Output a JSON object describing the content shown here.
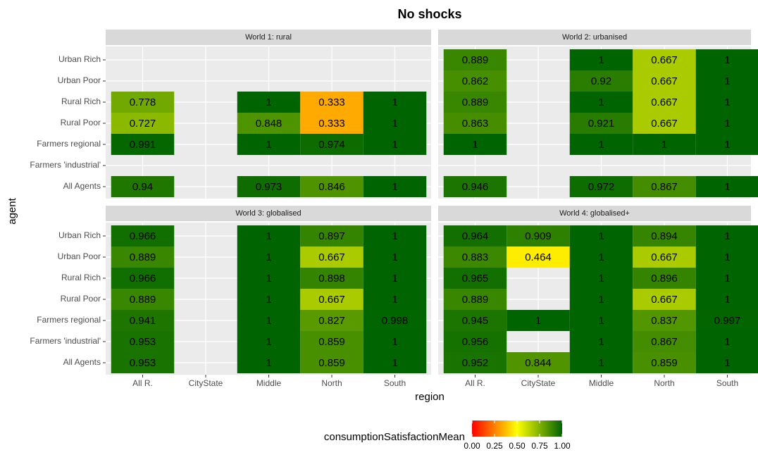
{
  "chart_data": {
    "type": "heatmap",
    "title": "No shocks",
    "x_label": "region",
    "y_label": "agent",
    "categories": [
      "All R.",
      "CityState",
      "Middle",
      "North",
      "South"
    ],
    "rows": [
      "Urban Rich",
      "Urban Poor",
      "Rural Rich",
      "Rural Poor",
      "Farmers regional",
      "Farmers 'industrial'",
      "All Agents"
    ],
    "grid": true,
    "facets": [
      {
        "title": "World 1: rural",
        "values": [
          [
            null,
            null,
            null,
            null,
            null
          ],
          [
            null,
            null,
            null,
            null,
            null
          ],
          [
            0.778,
            null,
            1,
            0.333,
            1
          ],
          [
            0.727,
            null,
            0.848,
            0.333,
            1
          ],
          [
            0.991,
            null,
            1,
            0.974,
            1
          ],
          [
            null,
            null,
            null,
            null,
            null
          ],
          [
            0.94,
            null,
            0.973,
            0.846,
            1
          ]
        ]
      },
      {
        "title": "World 2: urbanised",
        "values": [
          [
            0.889,
            null,
            1,
            0.667,
            1
          ],
          [
            0.862,
            null,
            0.92,
            0.667,
            1
          ],
          [
            0.889,
            null,
            1,
            0.667,
            1
          ],
          [
            0.863,
            null,
            0.921,
            0.667,
            1
          ],
          [
            1,
            null,
            1,
            1,
            1
          ],
          [
            null,
            null,
            null,
            null,
            null
          ],
          [
            0.946,
            null,
            0.972,
            0.867,
            1
          ]
        ]
      },
      {
        "title": "World 3: globalised",
        "values": [
          [
            0.966,
            null,
            1,
            0.897,
            1
          ],
          [
            0.889,
            null,
            1,
            0.667,
            1
          ],
          [
            0.966,
            null,
            1,
            0.898,
            1
          ],
          [
            0.889,
            null,
            1,
            0.667,
            1
          ],
          [
            0.941,
            null,
            1,
            0.827,
            0.998
          ],
          [
            0.953,
            null,
            1,
            0.859,
            1
          ],
          [
            0.953,
            null,
            1,
            0.859,
            1
          ]
        ]
      },
      {
        "title": "World 4: globalised+",
        "values": [
          [
            0.964,
            0.909,
            1,
            0.894,
            1
          ],
          [
            0.883,
            0.464,
            1,
            0.667,
            1
          ],
          [
            0.965,
            null,
            1,
            0.896,
            1
          ],
          [
            0.889,
            null,
            1,
            0.667,
            1
          ],
          [
            0.945,
            1,
            1,
            0.837,
            0.997
          ],
          [
            0.956,
            null,
            1,
            0.867,
            1
          ],
          [
            0.952,
            0.844,
            1,
            0.859,
            1
          ]
        ]
      }
    ],
    "legend_title": "consumptionSatisfactionMean",
    "colors": [
      "#ff0000",
      "#ffff00",
      "#006400"
    ],
    "clim": [
      0,
      1
    ],
    "cticks": [
      {
        "value": 0,
        "label": "0.00"
      },
      {
        "value": 0.25,
        "label": "0.25"
      },
      {
        "value": 0.5,
        "label": "0.50"
      },
      {
        "value": 0.75,
        "label": "0.75"
      },
      {
        "value": 1,
        "label": "1.00"
      }
    ]
  }
}
